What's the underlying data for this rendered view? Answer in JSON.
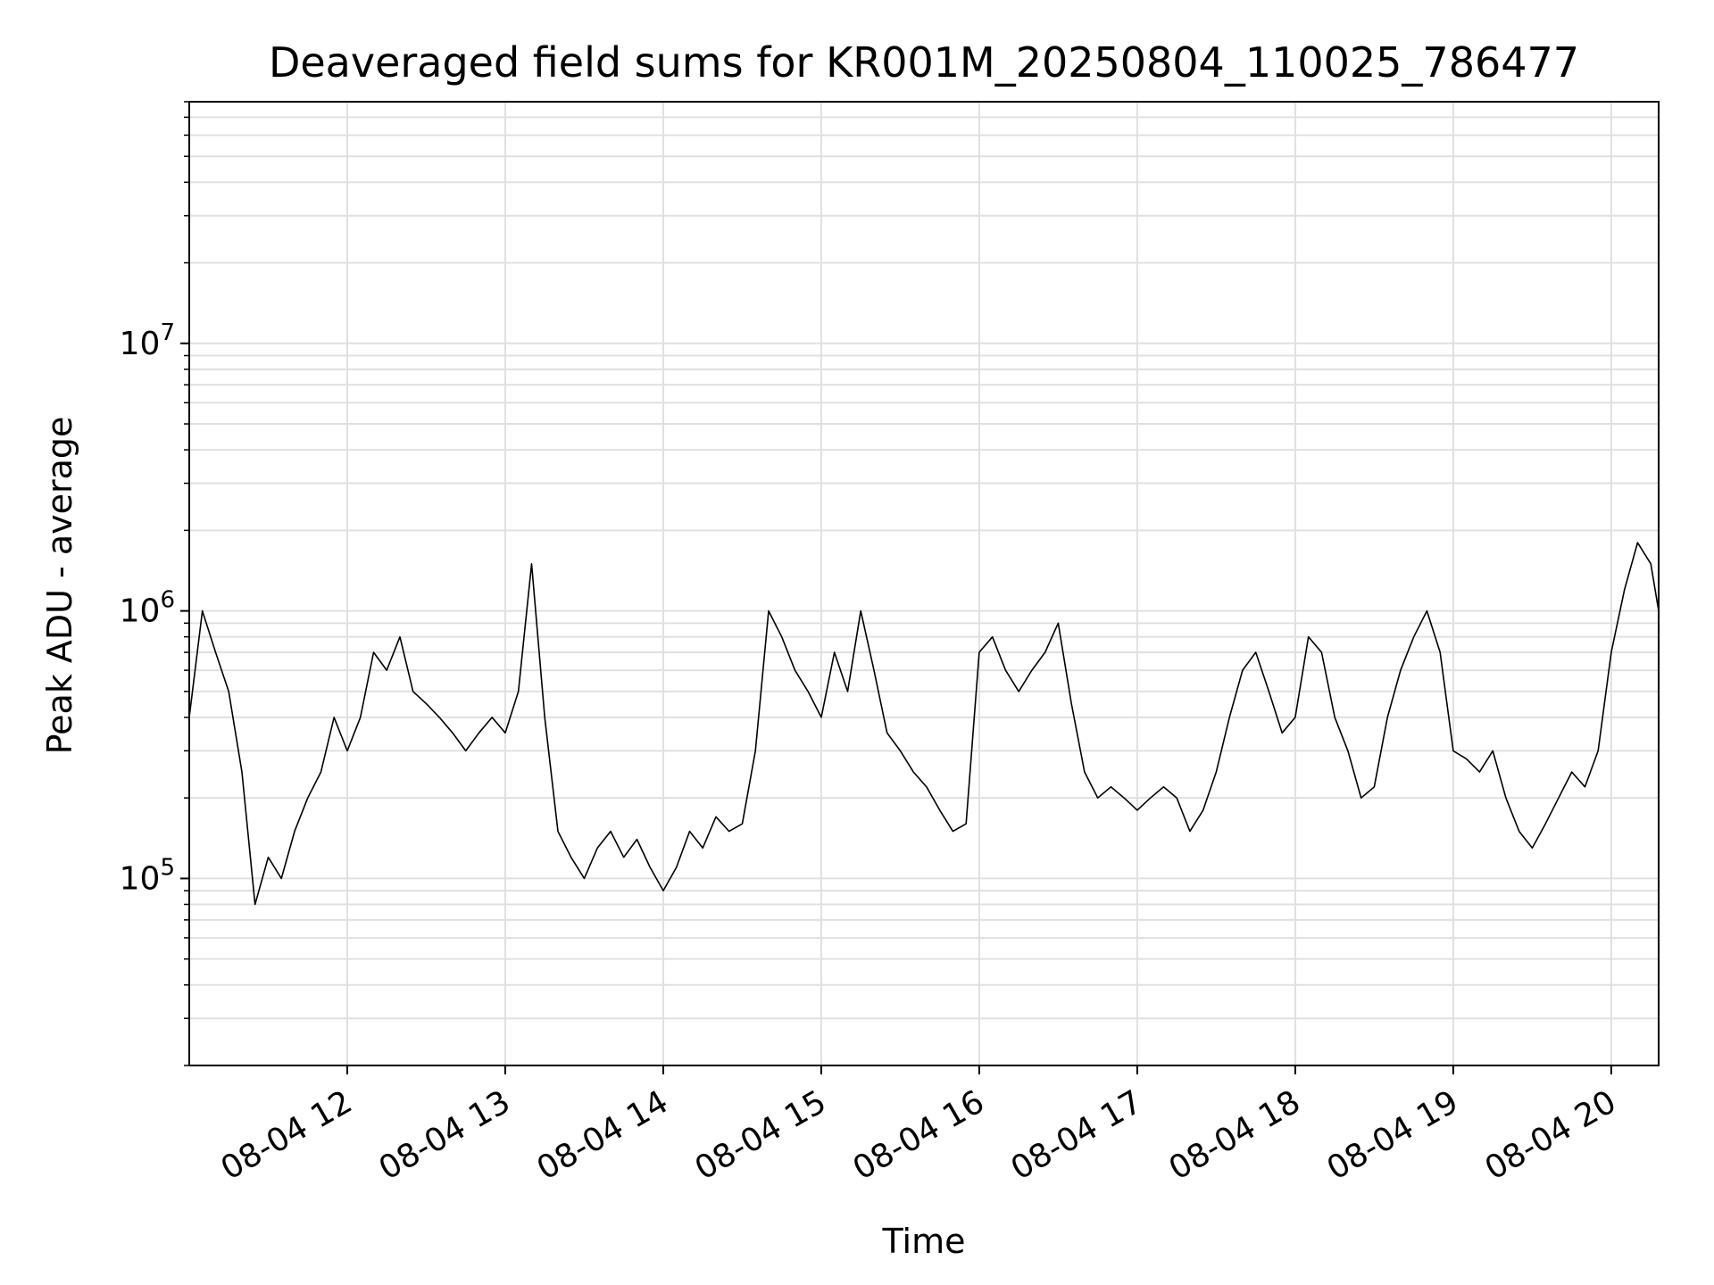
{
  "chart_data": {
    "type": "line",
    "title": "Deaveraged field sums for KR001M_20250804_110025_786477",
    "xlabel": "Time",
    "ylabel": "Peak ADU - average",
    "yscale": "log",
    "grid": true,
    "grid_minor_y": true,
    "line_color": "#000000",
    "grid_color": "#e0e0e0",
    "xlim": [
      "2025-08-04 11:00",
      "2025-08-04 20:18"
    ],
    "ylim": [
      20000,
      80000000
    ],
    "x_ticks": [
      {
        "value": "2025-08-04 12:00",
        "label": "08-04 12"
      },
      {
        "value": "2025-08-04 13:00",
        "label": "08-04 13"
      },
      {
        "value": "2025-08-04 14:00",
        "label": "08-04 14"
      },
      {
        "value": "2025-08-04 15:00",
        "label": "08-04 15"
      },
      {
        "value": "2025-08-04 16:00",
        "label": "08-04 16"
      },
      {
        "value": "2025-08-04 17:00",
        "label": "08-04 17"
      },
      {
        "value": "2025-08-04 18:00",
        "label": "08-04 18"
      },
      {
        "value": "2025-08-04 19:00",
        "label": "08-04 19"
      },
      {
        "value": "2025-08-04 20:00",
        "label": "08-04 20"
      }
    ],
    "y_ticks": [
      {
        "value": 100000,
        "base": "10",
        "exp": "5"
      },
      {
        "value": 1000000,
        "base": "10",
        "exp": "6"
      },
      {
        "value": 10000000,
        "base": "10",
        "exp": "7"
      }
    ],
    "series": [
      {
        "x": [
          "2025-08-04 11:00",
          "2025-08-04 11:05",
          "2025-08-04 11:10",
          "2025-08-04 11:15",
          "2025-08-04 11:20",
          "2025-08-04 11:25",
          "2025-08-04 11:30",
          "2025-08-04 11:35",
          "2025-08-04 11:40",
          "2025-08-04 11:45",
          "2025-08-04 11:50",
          "2025-08-04 11:55",
          "2025-08-04 12:00",
          "2025-08-04 12:05",
          "2025-08-04 12:10",
          "2025-08-04 12:15",
          "2025-08-04 12:20",
          "2025-08-04 12:25",
          "2025-08-04 12:30",
          "2025-08-04 12:35",
          "2025-08-04 12:40",
          "2025-08-04 12:45",
          "2025-08-04 12:50",
          "2025-08-04 12:55",
          "2025-08-04 13:00",
          "2025-08-04 13:05",
          "2025-08-04 13:10",
          "2025-08-04 13:15",
          "2025-08-04 13:20",
          "2025-08-04 13:25",
          "2025-08-04 13:30",
          "2025-08-04 13:35",
          "2025-08-04 13:40",
          "2025-08-04 13:45",
          "2025-08-04 13:50",
          "2025-08-04 13:55",
          "2025-08-04 14:00",
          "2025-08-04 14:05",
          "2025-08-04 14:10",
          "2025-08-04 14:15",
          "2025-08-04 14:20",
          "2025-08-04 14:25",
          "2025-08-04 14:30",
          "2025-08-04 14:35",
          "2025-08-04 14:40",
          "2025-08-04 14:45",
          "2025-08-04 14:50",
          "2025-08-04 14:55",
          "2025-08-04 15:00",
          "2025-08-04 15:05",
          "2025-08-04 15:10",
          "2025-08-04 15:15",
          "2025-08-04 15:20",
          "2025-08-04 15:25",
          "2025-08-04 15:30",
          "2025-08-04 15:35",
          "2025-08-04 15:40",
          "2025-08-04 15:45",
          "2025-08-04 15:50",
          "2025-08-04 15:55",
          "2025-08-04 16:00",
          "2025-08-04 16:05",
          "2025-08-04 16:10",
          "2025-08-04 16:15",
          "2025-08-04 16:20",
          "2025-08-04 16:25",
          "2025-08-04 16:30",
          "2025-08-04 16:35",
          "2025-08-04 16:40",
          "2025-08-04 16:45",
          "2025-08-04 16:50",
          "2025-08-04 16:55",
          "2025-08-04 17:00",
          "2025-08-04 17:05",
          "2025-08-04 17:10",
          "2025-08-04 17:15",
          "2025-08-04 17:20",
          "2025-08-04 17:25",
          "2025-08-04 17:30",
          "2025-08-04 17:35",
          "2025-08-04 17:40",
          "2025-08-04 17:45",
          "2025-08-04 17:50",
          "2025-08-04 17:55",
          "2025-08-04 18:00",
          "2025-08-04 18:05",
          "2025-08-04 18:10",
          "2025-08-04 18:15",
          "2025-08-04 18:20",
          "2025-08-04 18:25",
          "2025-08-04 18:30",
          "2025-08-04 18:35",
          "2025-08-04 18:40",
          "2025-08-04 18:45",
          "2025-08-04 18:50",
          "2025-08-04 18:55",
          "2025-08-04 19:00",
          "2025-08-04 19:05",
          "2025-08-04 19:10",
          "2025-08-04 19:15",
          "2025-08-04 19:20",
          "2025-08-04 19:25",
          "2025-08-04 19:30",
          "2025-08-04 19:35",
          "2025-08-04 19:40",
          "2025-08-04 19:45",
          "2025-08-04 19:50",
          "2025-08-04 19:55",
          "2025-08-04 20:00",
          "2025-08-04 20:05",
          "2025-08-04 20:10",
          "2025-08-04 20:15",
          "2025-08-04 20:18"
        ],
        "y": [
          400000,
          1000000,
          700000,
          500000,
          250000,
          80000,
          120000,
          100000,
          150000,
          200000,
          250000,
          400000,
          300000,
          400000,
          700000,
          600000,
          800000,
          500000,
          450000,
          400000,
          350000,
          300000,
          350000,
          400000,
          350000,
          500000,
          1500000,
          400000,
          150000,
          120000,
          100000,
          130000,
          150000,
          120000,
          140000,
          110000,
          90000,
          110000,
          150000,
          130000,
          170000,
          150000,
          160000,
          300000,
          1000000,
          800000,
          600000,
          500000,
          400000,
          700000,
          500000,
          1000000,
          600000,
          350000,
          300000,
          250000,
          220000,
          180000,
          150000,
          160000,
          700000,
          800000,
          600000,
          500000,
          600000,
          700000,
          900000,
          450000,
          250000,
          200000,
          220000,
          200000,
          180000,
          200000,
          220000,
          200000,
          150000,
          180000,
          250000,
          400000,
          600000,
          700000,
          500000,
          350000,
          400000,
          800000,
          700000,
          400000,
          300000,
          200000,
          220000,
          400000,
          600000,
          800000,
          1000000,
          700000,
          300000,
          280000,
          250000,
          300000,
          200000,
          150000,
          130000,
          160000,
          200000,
          250000,
          220000,
          300000,
          700000,
          1200000,
          1800000,
          1500000,
          1000000
        ]
      }
    ]
  }
}
